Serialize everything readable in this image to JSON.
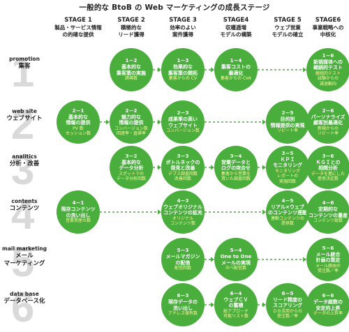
{
  "title": "一般的な BtoB の Web マーケティングの成長ステージ",
  "stages": [
    {
      "id": "STAGE 1",
      "desc": "製品・サービス情報\nの的確な提供"
    },
    {
      "id": "STAGE 2",
      "desc": "積極的な\nリード獲得"
    },
    {
      "id": "STAGE 3",
      "desc": "効率のよい\n案件獲得"
    },
    {
      "id": "STAGE4",
      "desc": "収穫逓増\nモデルの構築"
    },
    {
      "id": "STAGE 5",
      "desc": "ウェブ営業\nモデルの確立"
    },
    {
      "id": "STAGE6",
      "desc": "事業戦略への\n中核化"
    }
  ],
  "rows": [
    {
      "en": "promotion",
      "ja": "集客",
      "num": "1",
      "cells": [
        null,
        {
          "id": "1－2",
          "title": "基本的な\n集客策の実施",
          "sub": "誘導数"
        },
        {
          "id": "1－3",
          "title": "効果的な\n集客策の開拓",
          "sub": "集客からの CV"
        },
        {
          "id": "1－4",
          "title": "集客コストの\n最適化",
          "sub": "集客からの CVA"
        },
        null,
        {
          "id": "1－6",
          "title": "新規媒体への\n継続的テスト",
          "sub": "継続的テスト\n試験からの\n減退動向"
        }
      ]
    },
    {
      "en": "web site",
      "ja": "ウェブサイト",
      "num": "2",
      "cells": [
        {
          "id": "2－1",
          "title": "基本的な\n情報の提供",
          "sub": "PV 数\nセッション数"
        },
        {
          "id": "2－2",
          "title": "魅力的な\n情報の提供",
          "sub": "コンバージョン数\n回遊率・直帰率"
        },
        {
          "id": "2－3",
          "title": "成果率の高い\nウェブサイト",
          "sub": "コンバージョン数"
        },
        null,
        {
          "id": "2－5",
          "title": "目的別\n情報提供の実現",
          "sub": "リピート率"
        },
        {
          "id": "2－6",
          "title": "パーソナライズ\n顧客別最適化",
          "sub": "新規からの\nリピート率"
        }
      ]
    },
    {
      "en": "analitics",
      "ja": "分析・改善",
      "num": "3",
      "cells": [
        null,
        {
          "id": "3－2",
          "title": "基本的な\nデータ分析",
          "sub": "スポットでの\nデータ分析回数"
        },
        {
          "id": "3－3",
          "title": "ボトルネックの\n発見と改善",
          "sub": "デプス調査回数\n改善回数"
        },
        {
          "id": "3－4",
          "title": "営業データと\nログの突合せ",
          "sub": "集客から営業を\n貫いた調査回数"
        },
        {
          "id": "3－5",
          "title": "ＫＰＩ\nモニタリング",
          "sub": "モニタリング\nレポートの\n実施回数"
        },
        {
          "id": "3－6",
          "title": "ＫＧＩとの\n相関分析",
          "sub": "データを基にした\n意思決定数"
        }
      ]
    },
    {
      "en": "contents",
      "ja": "コンテンツ",
      "num": "4",
      "cells": [
        {
          "id": "4－1",
          "title": "現存コンテンツ\nの洗い出し",
          "sub": "営業資産の数"
        },
        null,
        {
          "id": "4－3",
          "title": "ウェブオリジナル\nコンテンツの拡充",
          "sub": "オリジナル\nコンテンツ数"
        },
        null,
        {
          "id": "4－5",
          "title": "リアル×ウェブ\nのコンテンツ連動",
          "sub": "連動コンテンツの\n提供数"
        },
        {
          "id": "4－6",
          "title": "定期的な\nコンテンツの量産",
          "sub": "コンテンツ総数"
        }
      ]
    },
    {
      "en": "mail marketing",
      "ja": "メール\nマーケティング",
      "num": "5",
      "cells": [
        null,
        null,
        {
          "id": "5－3",
          "title": "メールマガジン\nの配信",
          "sub": "配信回数"
        },
        {
          "id": "5－4",
          "title": "One to One\nメールの実現",
          "sub": "のべ配信数"
        },
        null,
        {
          "id": "5－6",
          "title": "メール統合\n計画の策定",
          "sub": "メール経由の\n受注数／率"
        }
      ]
    },
    {
      "en": "data base",
      "ja": "データベース化",
      "num": "6",
      "cells": [
        null,
        null,
        {
          "id": "6－3",
          "title": "現存データの\n洗い出し",
          "sub": "アドレス保有数"
        },
        {
          "id": "6－4",
          "title": "ウェブＣＶ\nの蓄積",
          "sub": "総アプローチ\n可能リスト数"
        },
        {
          "id": "6－5",
          "title": "リード精度の\nスコアリング",
          "sub": "ＤＢ活用からの\n受注数／率"
        },
        {
          "id": "6－6",
          "title": "データ総数の\n安定的上昇",
          "sub": "データの上昇率"
        }
      ]
    }
  ]
}
